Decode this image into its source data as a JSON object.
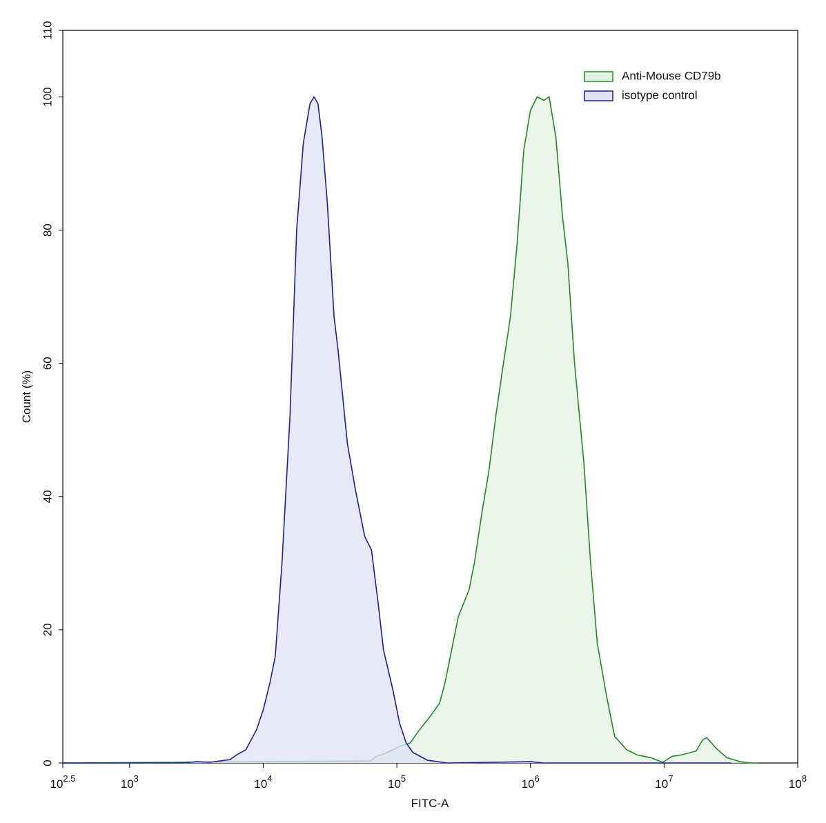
{
  "chart_data": {
    "type": "area",
    "x_label": "FITC-A",
    "y_label": "Count  (%)",
    "x_scale": "log",
    "xlim": [
      316.2278,
      100000000
    ],
    "ylim": [
      0,
      110
    ],
    "xticks": [
      {
        "value": 316.2278,
        "label": "10",
        "exponent": "2.5"
      },
      {
        "value": 1000,
        "label": "10",
        "exponent": "3"
      },
      {
        "value": 10000,
        "label": "10",
        "exponent": "4"
      },
      {
        "value": 100000,
        "label": "10",
        "exponent": "5"
      },
      {
        "value": 1000000,
        "label": "10",
        "exponent": "6"
      },
      {
        "value": 10000000,
        "label": "10",
        "exponent": "7"
      },
      {
        "value": 100000000,
        "label": "10",
        "exponent": "8"
      }
    ],
    "yticks": [
      0,
      20,
      40,
      60,
      80,
      100,
      110
    ],
    "legend": "top-right",
    "series": [
      {
        "name": "Anti-Mouse CD79b",
        "color": "#1e8a1e",
        "fill_color": "#e4f2e2",
        "x": [
          316.2278,
          63096,
          70795,
          83176,
          104713,
          125893,
          147911,
          177828,
          208930,
          229087,
          257040,
          288403,
          346737,
          380189,
          436516,
          489779,
          549541,
          616595,
          707946,
          794328,
          891251,
          1000000,
          1122018,
          1258925,
          1380384,
          1548817,
          1737801,
          1905461,
          2137962,
          2511886,
          2818383,
          3162278,
          3715352,
          4265795,
          5248075,
          6309573,
          7943282,
          9772372,
          11481536,
          13489629,
          17378008,
          19498446,
          20892961,
          24547089,
          29512092,
          37153523,
          44668359,
          50118723
        ],
        "values": [
          0,
          0.3,
          1,
          1.5,
          2.5,
          3,
          5,
          7,
          9,
          12,
          17,
          22,
          26,
          30,
          38,
          44,
          52,
          59,
          67,
          78,
          92,
          98,
          100,
          99.5,
          100,
          94,
          82,
          75,
          60,
          45,
          30,
          18,
          10,
          4,
          2,
          1.2,
          0.8,
          0.1,
          1,
          1.2,
          1.8,
          3.5,
          3.8,
          2.2,
          0.8,
          0.2,
          0,
          0
        ]
      },
      {
        "name": "isotype control",
        "color": "#1c1ca0",
        "fill_color": "#dfe1f7",
        "x": [
          316.2278,
          2512,
          3162,
          3981,
          5623,
          6310,
          7413,
          8913,
          10000,
          11220,
          12303,
          13804,
          15849,
          17783,
          19953,
          22387,
          23988,
          25704,
          27542,
          30200,
          33884,
          36308,
          42658,
          48978,
          57544,
          64565,
          72444,
          79433,
          93325,
          104713,
          117490,
          131826,
          169824,
          239883,
          1000000,
          1258925,
          31622777
        ],
        "values": [
          0,
          0,
          0.2,
          0.1,
          0.5,
          1.2,
          2,
          5,
          8,
          12,
          16,
          30,
          52,
          80,
          93,
          99,
          100,
          99,
          94,
          84,
          67,
          62,
          48,
          41,
          34,
          32,
          24,
          17,
          11,
          6,
          3,
          1.6,
          0.4,
          0,
          0.2,
          0,
          0
        ]
      }
    ]
  }
}
